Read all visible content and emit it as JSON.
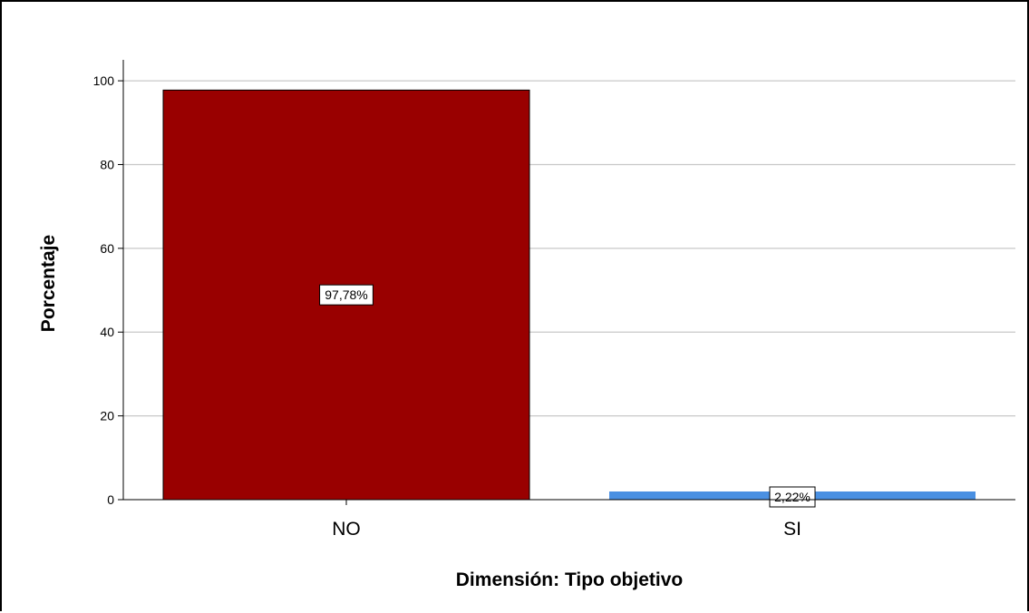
{
  "chart_data": {
    "type": "bar",
    "categories": [
      "NO",
      "SI"
    ],
    "values": [
      97.78,
      2.22
    ],
    "data_labels": [
      "97,78%",
      "2,22%"
    ],
    "colors": [
      "#990000",
      "#4a90e2"
    ],
    "xlabel": "Dimensión: Tipo objetivo",
    "ylabel": "Porcentaje",
    "ylim": [
      0,
      105
    ],
    "yticks": [
      0,
      20,
      40,
      60,
      80,
      100
    ],
    "grid": true,
    "legend": "none"
  }
}
